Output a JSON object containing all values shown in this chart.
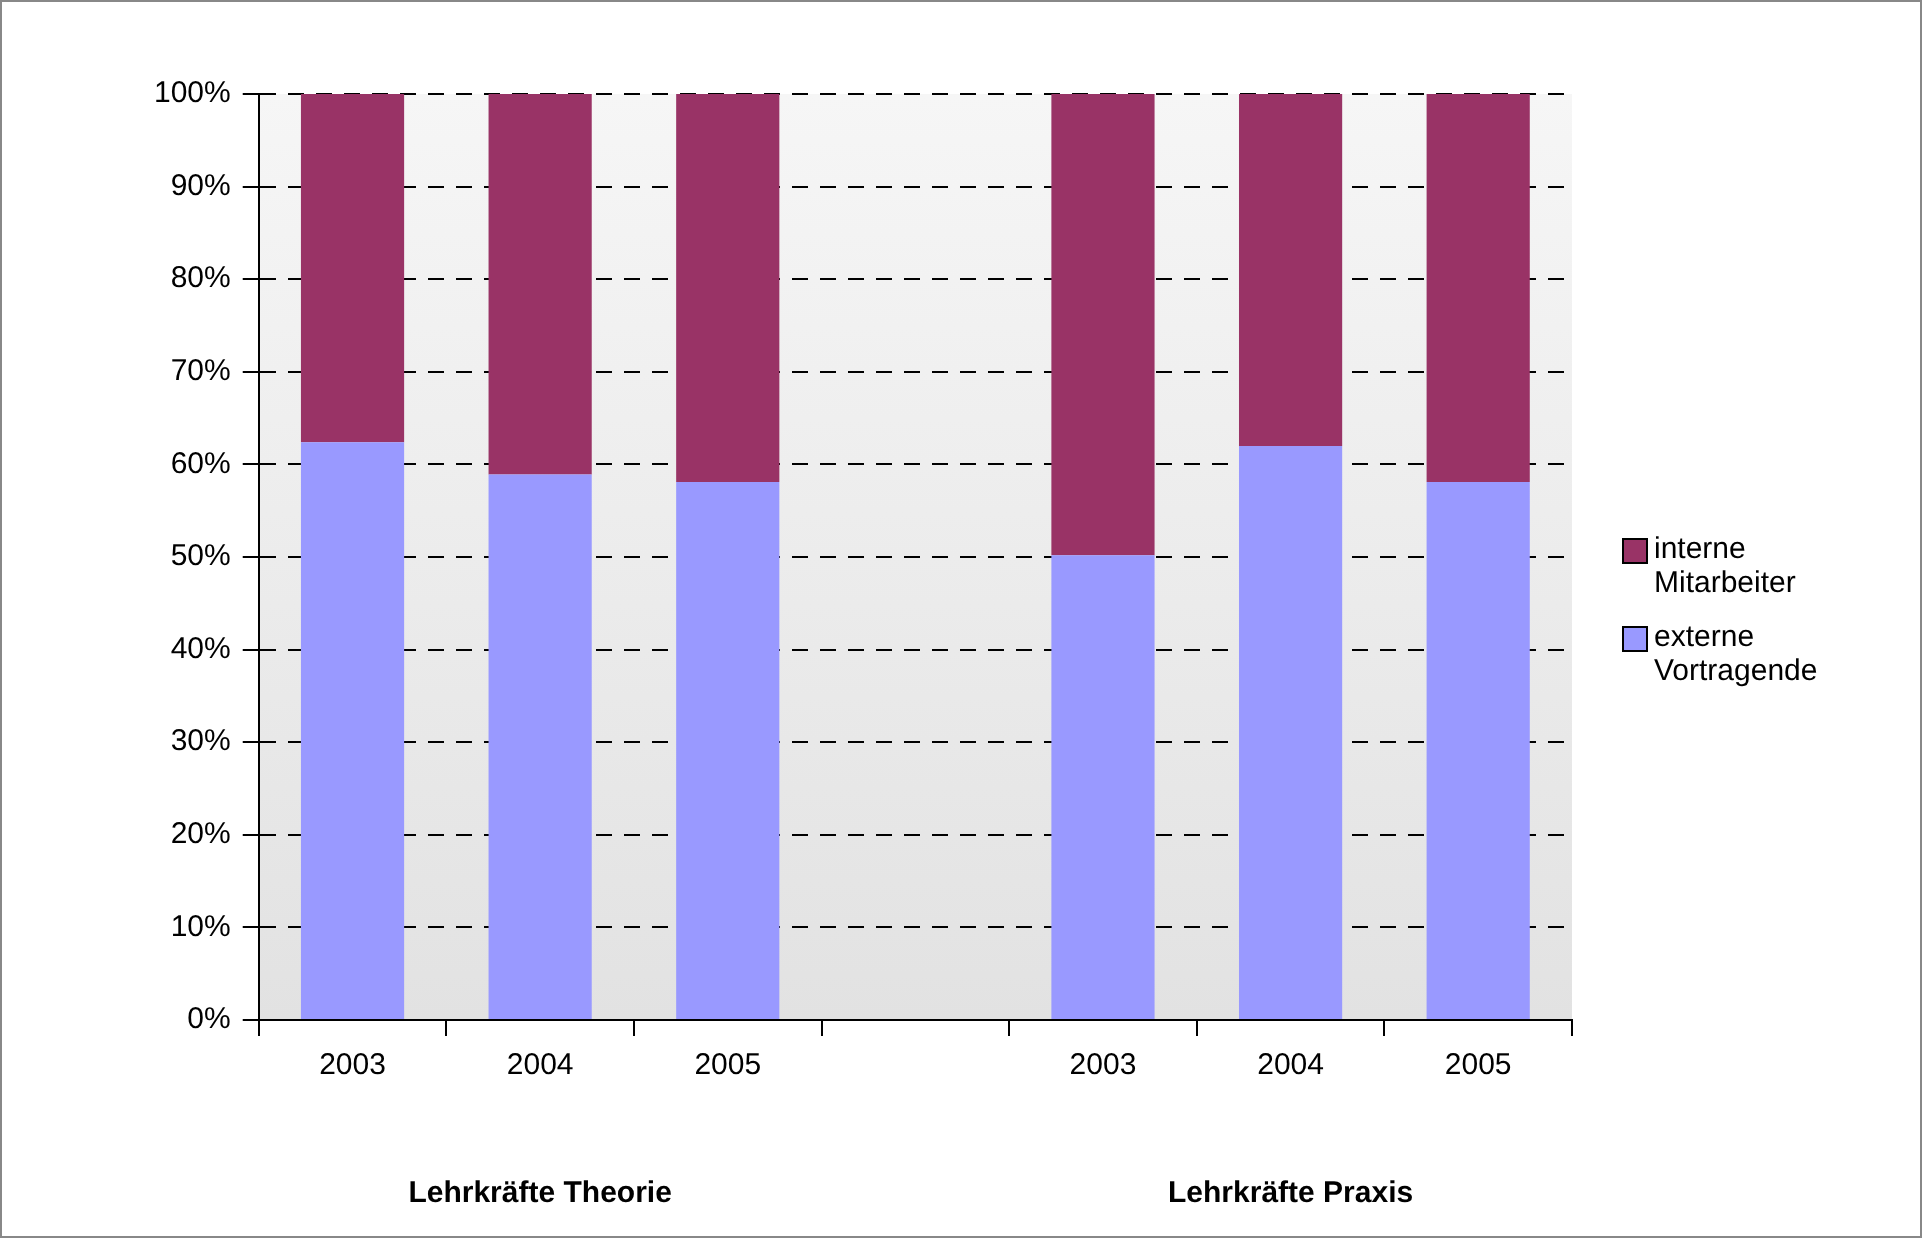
{
  "chart_data": {
    "type": "bar",
    "stacked": true,
    "categories": [
      "2003",
      "2004",
      "2005",
      null,
      "2003",
      "2004",
      "2005"
    ],
    "series": [
      {
        "name": "externe Vortragende",
        "color": "#9999ff",
        "values": [
          62.4,
          58.9,
          58.1,
          null,
          50.2,
          62,
          58.1
        ]
      },
      {
        "name": "interne Mitarbeiter",
        "color": "#993366",
        "values": [
          37.6,
          41.1,
          41.9,
          null,
          49.8,
          38,
          41.9
        ]
      }
    ],
    "ylim": [
      0,
      100
    ],
    "yticks": [
      {
        "value": 0,
        "label": "0%"
      },
      {
        "value": 10,
        "label": "10%"
      },
      {
        "value": 20,
        "label": "20%"
      },
      {
        "value": 30,
        "label": "30%"
      },
      {
        "value": 40,
        "label": "40%"
      },
      {
        "value": 50,
        "label": "50%"
      },
      {
        "value": 60,
        "label": "60%"
      },
      {
        "value": 70,
        "label": "70%"
      },
      {
        "value": 80,
        "label": "80%"
      },
      {
        "value": 90,
        "label": "90%"
      },
      {
        "value": 100,
        "label": "100%"
      }
    ],
    "grid": "y",
    "legend": "right",
    "annotations": [
      "Lehrkräfte Theorie",
      "Lehrkräfte Praxis"
    ]
  }
}
